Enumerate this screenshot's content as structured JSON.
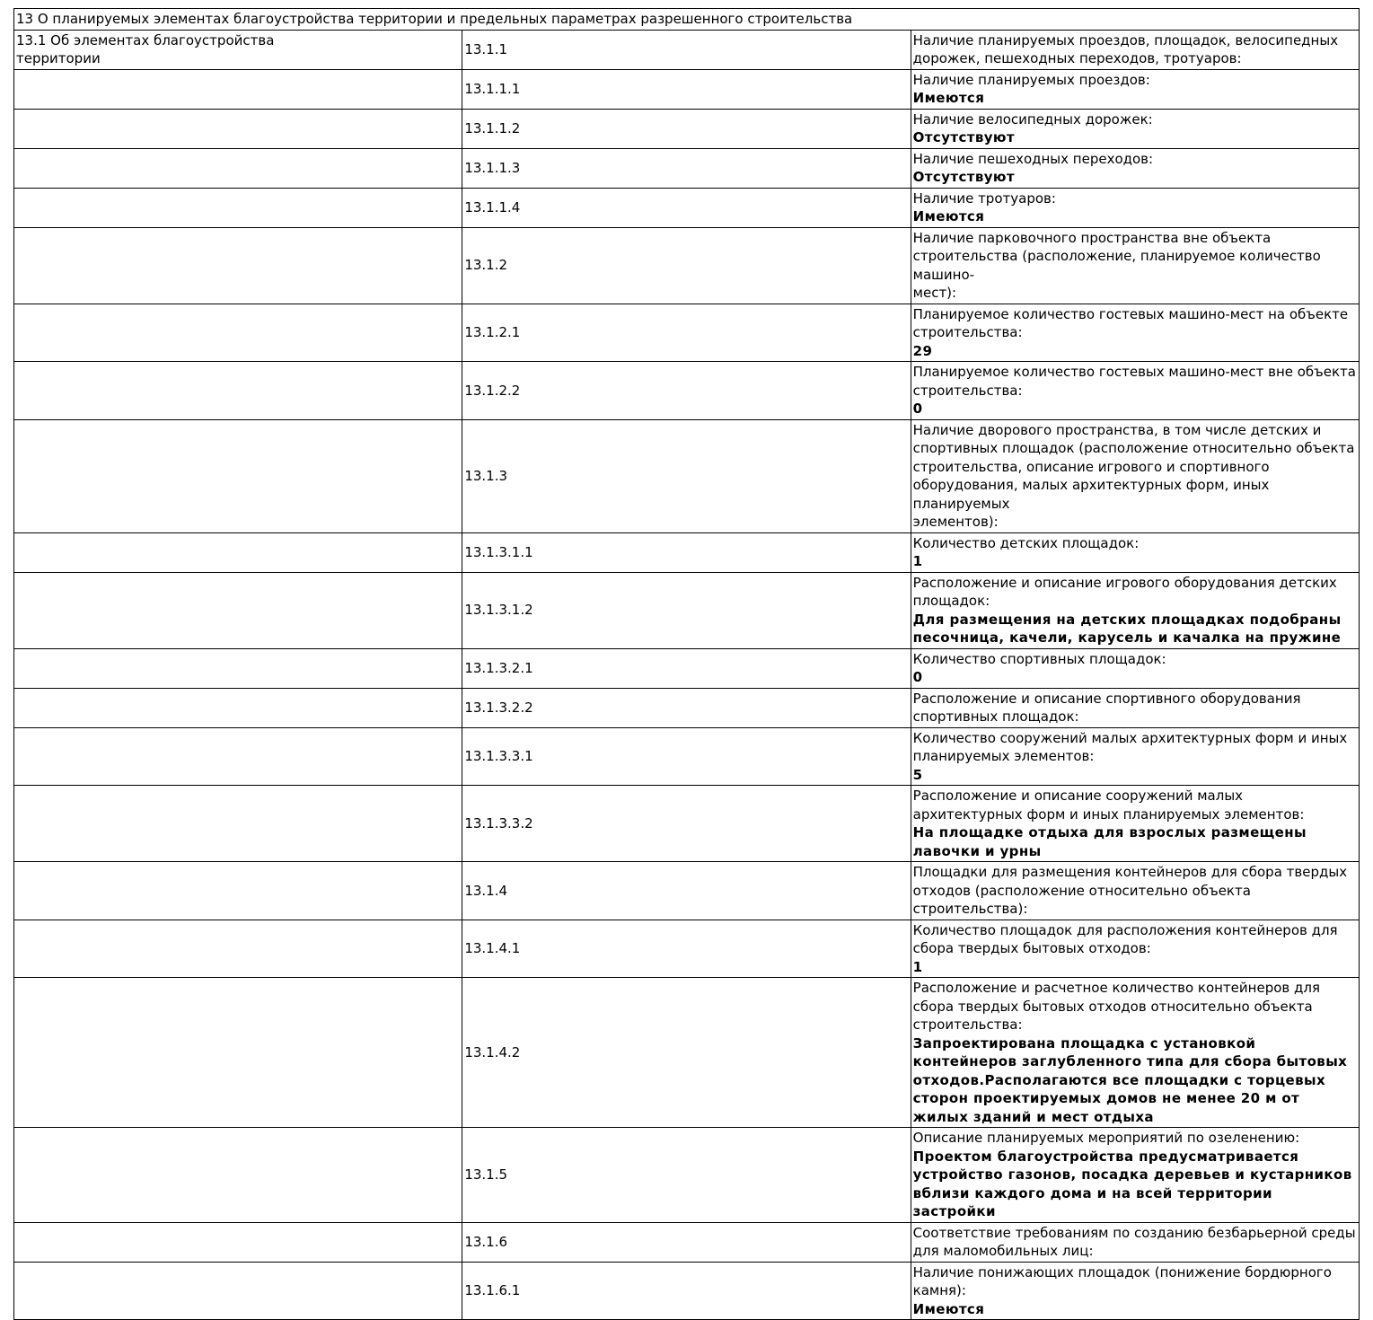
{
  "header": "13 О планируемых элементах благоустройства территории и предельных параметрах разрешенного строительства",
  "section_label": "13.1 Об элементах благоустройства\nтерритории",
  "rows": [
    {
      "code": "13.1.1",
      "label": "Наличие планируемых проездов, площадок, велосипедных дорожек, пешеходных переходов, тротуаров:",
      "value": ""
    },
    {
      "code": "13.1.1.1",
      "label": "Наличие планируемых проездов:",
      "value": "Имеются"
    },
    {
      "code": "13.1.1.2",
      "label": "Наличие велосипедных дорожек:",
      "value": "Отсутствуют"
    },
    {
      "code": "13.1.1.3",
      "label": "Наличие пешеходных переходов:",
      "value": "Отсутствуют"
    },
    {
      "code": "13.1.1.4",
      "label": "Наличие тротуаров:",
      "value": "Имеются"
    },
    {
      "code": "13.1.2",
      "label": "Наличие парковочного пространства вне объекта строительства (расположение, планируемое количество машино-\nмест):",
      "value": ""
    },
    {
      "code": "13.1.2.1",
      "label": "Планируемое количество гостевых машино-мест на объекте строительства:",
      "value": "29"
    },
    {
      "code": "13.1.2.2",
      "label": "Планируемое количество гостевых машино-мест вне объекта строительства:",
      "value": "0"
    },
    {
      "code": "13.1.3",
      "label": "Наличие дворового пространства, в том числе детских и спортивных площадок (расположение относительно объекта\nстроительства, описание игрового и спортивного оборудования, малых архитектурных форм, иных планируемых\nэлементов):",
      "value": ""
    },
    {
      "code": "13.1.3.1.1",
      "label": "Количество детских площадок:",
      "value": "1"
    },
    {
      "code": "13.1.3.1.2",
      "label": "Расположение и описание игрового оборудования детских площадок:",
      "value": "Для размещения на детских площадках подобраны песочница, качели, карусель и качалка на пружине"
    },
    {
      "code": "13.1.3.2.1",
      "label": "Количество спортивных площадок:",
      "value": "0"
    },
    {
      "code": "13.1.3.2.2",
      "label": "Расположение и описание спортивного оборудования спортивных площадок:",
      "value": ""
    },
    {
      "code": "13.1.3.3.1",
      "label": "Количество сооружений малых архитектурных форм и иных планируемых элементов:",
      "value": "5"
    },
    {
      "code": "13.1.3.3.2",
      "label": "Расположение и описание сооружений малых архитектурных форм и иных планируемых элементов:",
      "value": "На площадке отдыха для взрослых размещены лавочки и урны"
    },
    {
      "code": "13.1.4",
      "label": "Площадки для размещения контейнеров для сбора твердых отходов (расположение относительно объекта\nстроительства):",
      "value": ""
    },
    {
      "code": "13.1.4.1",
      "label": "Количество площадок для расположения контейнеров для сбора твердых бытовых отходов:",
      "value": "1"
    },
    {
      "code": "13.1.4.2",
      "label": "Расположение и расчетное количество контейнеров для сбора твердых бытовых отходов относительно объекта\nстроительства:",
      "value": "Запроектирована площадка с установкой контейнеров заглубленного типа для сбора бытовых\nотходов.Располагаются все площадки с торцевых сторон проектируемых домов не менее 20 м от\nжилых зданий и мест отдыха"
    },
    {
      "code": "13.1.5",
      "label": "Описание планируемых мероприятий по озеленению:",
      "value": "Проектом благоустройства предусматривается устройство газонов, посадка деревьев и кустарников\nвблизи каждого дома и на всей территории застройки"
    },
    {
      "code": "13.1.6",
      "label": "Соответствие требованиям по созданию безбарьерной среды для маломобильных лиц:",
      "value": ""
    },
    {
      "code": "13.1.6.1",
      "label": "Наличие понижающих площадок (понижение бордюрного камня):",
      "value": "Имеются"
    }
  ]
}
